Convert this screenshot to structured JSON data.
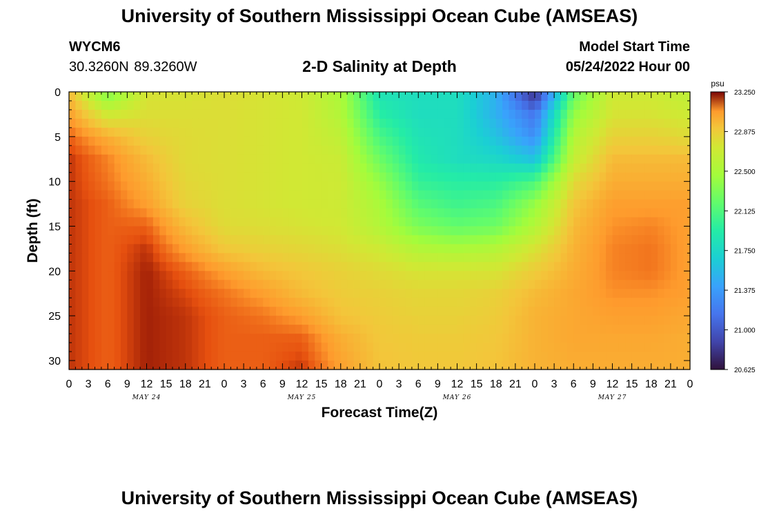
{
  "header": {
    "title": "University of Southern Mississippi Ocean Cube (AMSEAS)",
    "station_id": "WYCM6",
    "station_coords": "30.3260N  89.3260W",
    "plot_title": "2-D Salinity at Depth",
    "start_label": "Model Start Time",
    "start_value": "05/24/2022 Hour 00"
  },
  "footer": {
    "title": "University of Southern Mississippi Ocean Cube (AMSEAS)"
  },
  "chart_data": {
    "type": "heatmap",
    "title": "2-D Salinity at Depth",
    "xlabel": "Forecast Time(Z)",
    "ylabel": "Depth (ft)",
    "x_unit": "hours since model start",
    "xlim": [
      0,
      96
    ],
    "ylim": [
      0,
      31
    ],
    "y_inverted": true,
    "x_tick_labels": [
      "0",
      "3",
      "6",
      "9",
      "12",
      "15",
      "18",
      "21",
      "0",
      "3",
      "6",
      "9",
      "12",
      "15",
      "18",
      "21",
      "0",
      "3",
      "6",
      "9",
      "12",
      "15",
      "18",
      "21",
      "0",
      "3",
      "6",
      "9",
      "12",
      "15",
      "18",
      "21",
      "0"
    ],
    "day_labels": [
      "MAY 24",
      "MAY 25",
      "MAY 26",
      "MAY 27"
    ],
    "y_ticks": [
      0,
      5,
      10,
      15,
      20,
      25,
      30
    ],
    "colorbar": {
      "unit": "psu",
      "min": 20.625,
      "max": 23.25,
      "tick_labels": [
        "23.250",
        "22.875",
        "22.500",
        "22.125",
        "21.750",
        "21.375",
        "21.000",
        "20.625"
      ]
    },
    "depths_ft": [
      0,
      2.5,
      5,
      7.5,
      10,
      12.5,
      15,
      17.5,
      20,
      22.5,
      25,
      27.5,
      31
    ],
    "times_h": [
      0,
      6,
      12,
      18,
      24,
      30,
      36,
      42,
      48,
      54,
      60,
      66,
      72,
      78,
      84,
      90,
      96
    ],
    "salinity_psu": [
      [
        22.95,
        22.3,
        22.75,
        22.75,
        22.78,
        22.75,
        22.7,
        22.5,
        21.85,
        21.8,
        21.8,
        21.5,
        20.75,
        22.2,
        22.7,
        22.7,
        22.6
      ],
      [
        23.05,
        22.7,
        22.78,
        22.78,
        22.78,
        22.75,
        22.72,
        22.55,
        21.95,
        21.8,
        21.8,
        21.5,
        21.15,
        22.4,
        22.75,
        22.75,
        22.7
      ],
      [
        23.15,
        23.0,
        22.85,
        22.8,
        22.78,
        22.75,
        22.72,
        22.62,
        22.1,
        21.85,
        21.8,
        21.6,
        21.3,
        22.55,
        22.85,
        22.85,
        22.8
      ],
      [
        23.2,
        23.1,
        22.95,
        22.8,
        22.78,
        22.75,
        22.72,
        22.68,
        22.25,
        21.9,
        21.8,
        21.75,
        21.6,
        22.65,
        22.95,
        22.95,
        22.95
      ],
      [
        23.2,
        23.12,
        23.0,
        22.82,
        22.78,
        22.75,
        22.72,
        22.7,
        22.4,
        22.0,
        21.95,
        21.95,
        22.1,
        22.8,
        23.0,
        23.0,
        23.0
      ],
      [
        23.2,
        23.15,
        23.05,
        22.85,
        22.78,
        22.75,
        22.72,
        22.7,
        22.5,
        22.15,
        22.05,
        22.1,
        22.4,
        22.9,
        23.05,
        23.05,
        23.05
      ],
      [
        23.2,
        23.15,
        23.15,
        22.95,
        22.8,
        22.78,
        22.75,
        22.72,
        22.55,
        22.3,
        22.2,
        22.25,
        22.55,
        22.95,
        23.08,
        23.1,
        23.05
      ],
      [
        23.2,
        23.15,
        23.2,
        23.05,
        22.9,
        22.85,
        22.82,
        22.78,
        22.7,
        22.55,
        22.5,
        22.55,
        22.75,
        22.98,
        23.1,
        23.12,
        23.05
      ],
      [
        23.2,
        23.15,
        23.22,
        23.15,
        23.05,
        22.95,
        22.9,
        22.85,
        22.8,
        22.75,
        22.75,
        22.75,
        22.88,
        23.0,
        23.1,
        23.12,
        23.05
      ],
      [
        23.2,
        23.15,
        23.22,
        23.18,
        23.12,
        23.05,
        22.95,
        22.88,
        22.85,
        22.82,
        22.82,
        22.85,
        22.95,
        23.02,
        23.08,
        23.08,
        23.05
      ],
      [
        23.2,
        23.15,
        23.22,
        23.2,
        23.15,
        23.12,
        23.05,
        22.92,
        22.88,
        22.85,
        22.85,
        22.88,
        22.98,
        23.02,
        23.05,
        23.05,
        23.02
      ],
      [
        23.2,
        23.15,
        23.22,
        23.2,
        23.15,
        23.15,
        23.15,
        23.0,
        22.9,
        22.88,
        22.88,
        22.9,
        22.98,
        23.02,
        23.02,
        23.02,
        23.0
      ],
      [
        23.2,
        23.15,
        23.22,
        23.2,
        23.15,
        23.15,
        23.2,
        23.05,
        22.92,
        22.9,
        22.9,
        22.92,
        22.98,
        23.0,
        23.0,
        23.0,
        23.0
      ]
    ]
  }
}
